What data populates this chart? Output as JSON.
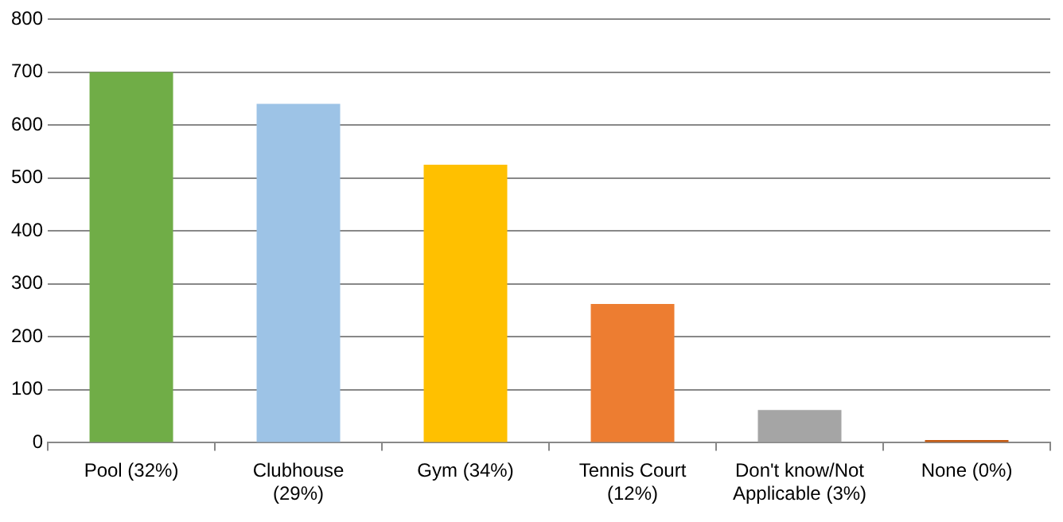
{
  "chart_data": {
    "type": "bar",
    "categories": [
      "Pool (32%)",
      "Clubhouse (29%)",
      "Gym (34%)",
      "Tennis Court (12%)",
      "Don't know/Not Applicable (3%)",
      "None (0%)"
    ],
    "values": [
      700,
      640,
      525,
      262,
      62,
      5
    ],
    "colors": [
      "#70ad47",
      "#9dc3e6",
      "#ffc000",
      "#ed7d31",
      "#a5a5a5",
      "#c55a11"
    ],
    "ylim": [
      0,
      800
    ],
    "yticks": [
      0,
      100,
      200,
      300,
      400,
      500,
      600,
      700,
      800
    ],
    "grid": "y",
    "legend": false
  }
}
